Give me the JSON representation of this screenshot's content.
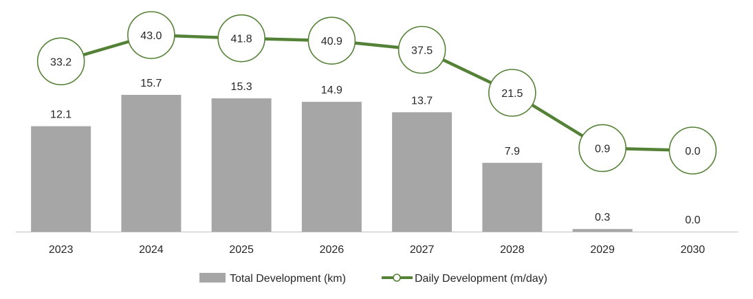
{
  "chart_data": {
    "type": "bar",
    "categories": [
      "2023",
      "2024",
      "2025",
      "2026",
      "2027",
      "2028",
      "2029",
      "2030"
    ],
    "series": [
      {
        "name": "Total Development (km)",
        "type": "bar",
        "color": "#a6a6a6",
        "values": [
          12.1,
          15.7,
          15.3,
          14.9,
          13.7,
          7.9,
          0.3,
          0.0
        ],
        "labels": [
          "12.1",
          "15.7",
          "15.3",
          "14.9",
          "13.7",
          "7.9",
          "0.3",
          "0.0"
        ]
      },
      {
        "name": "Daily Development (m/day)",
        "type": "line",
        "color": "#538135",
        "marker": "circle",
        "values": [
          33.2,
          43.0,
          41.8,
          40.9,
          37.5,
          21.5,
          0.9,
          0.0
        ],
        "labels": [
          "33.2",
          "43.0",
          "41.8",
          "40.9",
          "37.5",
          "21.5",
          "0.9",
          "0.0"
        ]
      }
    ],
    "bar_axis_range": [
      0,
      20
    ],
    "line_axis_range": [
      -30,
      50
    ],
    "grid": false,
    "legend_position": "bottom",
    "axis_line_color": "#bfbfbf"
  }
}
